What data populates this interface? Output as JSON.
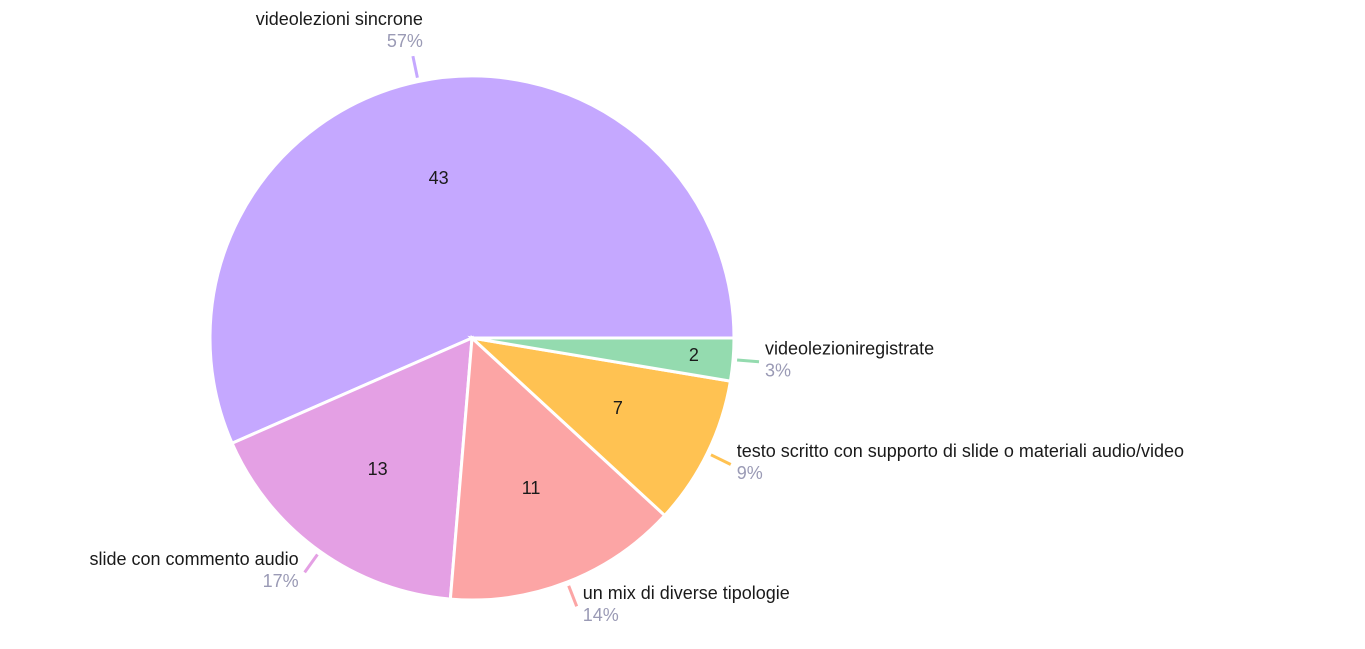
{
  "chart_data": {
    "type": "pie",
    "categories": [
      "videolezioni sincrone",
      "slide con commento audio",
      "un mix di diverse tipologie",
      "testo scritto con supporto di slide o materiali audio/video",
      "videolezioniregistrate"
    ],
    "values": [
      43,
      13,
      11,
      7,
      2
    ],
    "percent_labels": [
      "57%",
      "17%",
      "14%",
      "9%",
      "3%"
    ],
    "colors": [
      "#c5a8ff",
      "#e4a0e4",
      "#fca5a5",
      "#ffc252",
      "#94dbaf"
    ]
  }
}
